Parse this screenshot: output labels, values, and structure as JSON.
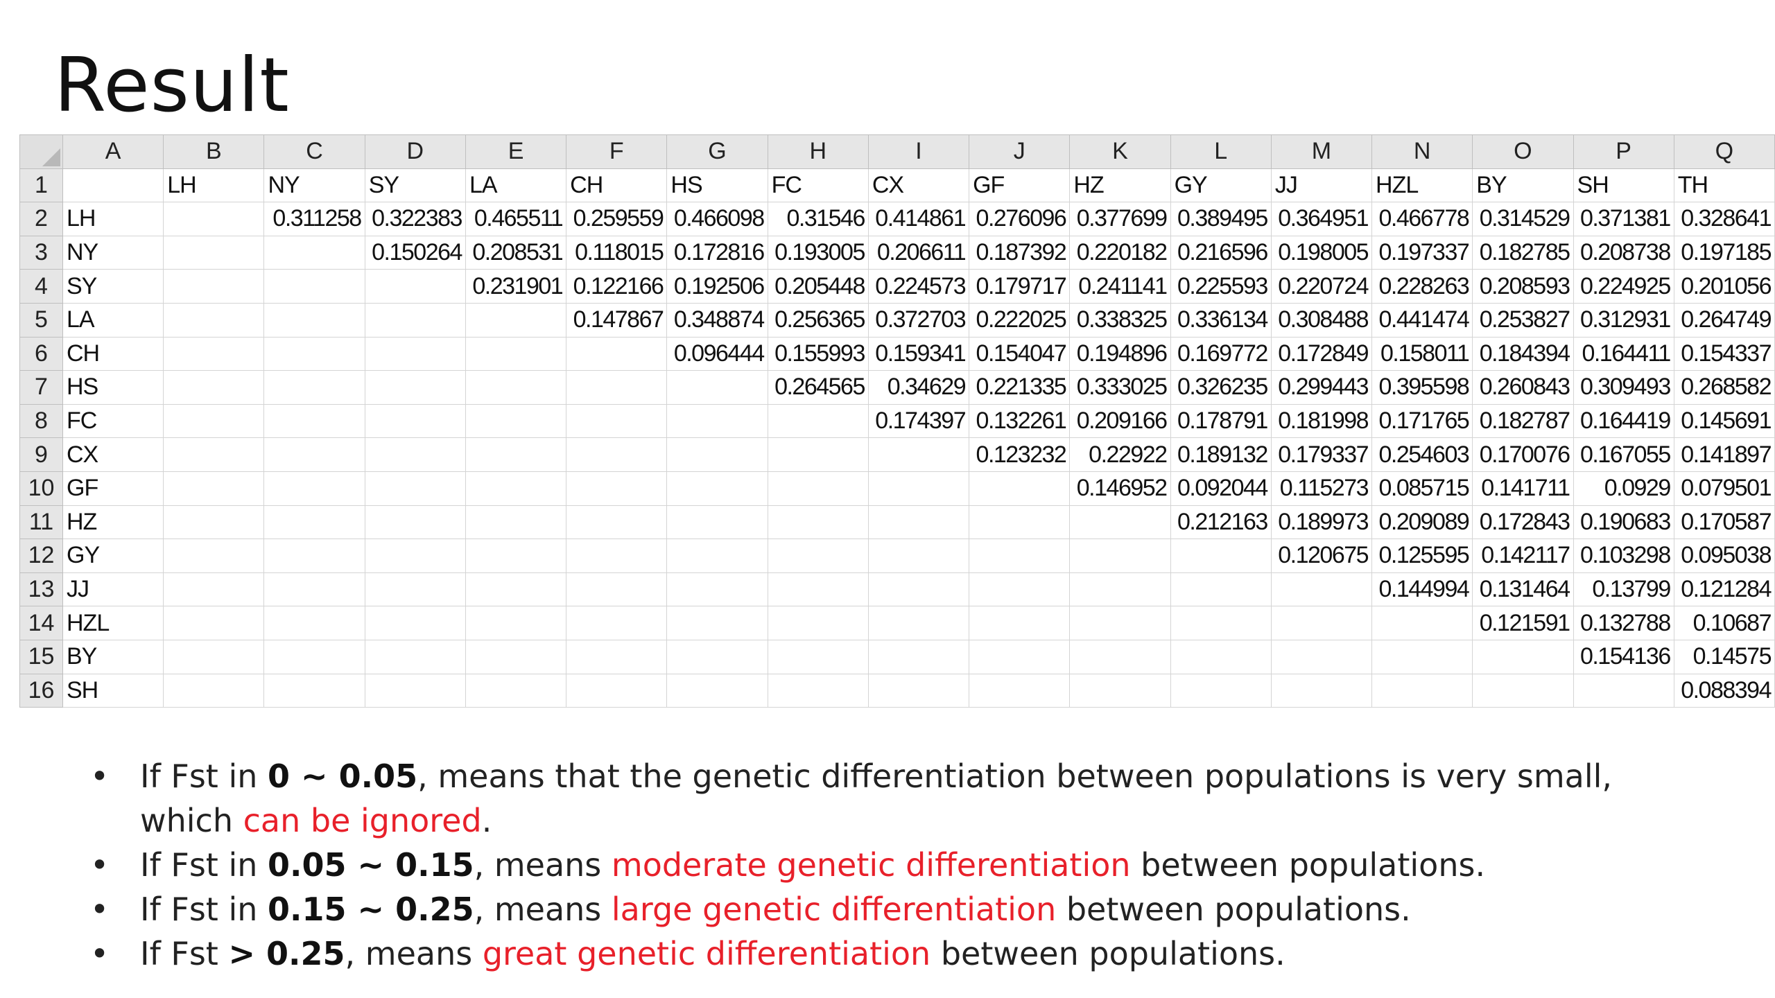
{
  "slide": {
    "title": "Result"
  },
  "sheet": {
    "column_letters": [
      "A",
      "B",
      "C",
      "D",
      "E",
      "F",
      "G",
      "H",
      "I",
      "J",
      "K",
      "L",
      "M",
      "N",
      "O",
      "P",
      "Q"
    ],
    "row_numbers": [
      "1",
      "2",
      "3",
      "4",
      "5",
      "6",
      "7",
      "8",
      "9",
      "10",
      "11",
      "12",
      "13",
      "14",
      "15",
      "16"
    ],
    "rows": [
      [
        "",
        "LH",
        "NY",
        "SY",
        "LA",
        "CH",
        "HS",
        "FC",
        "CX",
        "GF",
        "HZ",
        "GY",
        "JJ",
        "HZL",
        "BY",
        "SH",
        "TH"
      ],
      [
        "LH",
        "",
        "0.311258",
        "0.322383",
        "0.465511",
        "0.259559",
        "0.466098",
        "0.31546",
        "0.414861",
        "0.276096",
        "0.377699",
        "0.389495",
        "0.364951",
        "0.466778",
        "0.314529",
        "0.371381",
        "0.328641"
      ],
      [
        "NY",
        "",
        "",
        "0.150264",
        "0.208531",
        "0.118015",
        "0.172816",
        "0.193005",
        "0.206611",
        "0.187392",
        "0.220182",
        "0.216596",
        "0.198005",
        "0.197337",
        "0.182785",
        "0.208738",
        "0.197185"
      ],
      [
        "SY",
        "",
        "",
        "",
        "0.231901",
        "0.122166",
        "0.192506",
        "0.205448",
        "0.224573",
        "0.179717",
        "0.241141",
        "0.225593",
        "0.220724",
        "0.228263",
        "0.208593",
        "0.224925",
        "0.201056"
      ],
      [
        "LA",
        "",
        "",
        "",
        "",
        "0.147867",
        "0.348874",
        "0.256365",
        "0.372703",
        "0.222025",
        "0.338325",
        "0.336134",
        "0.308488",
        "0.441474",
        "0.253827",
        "0.312931",
        "0.264749"
      ],
      [
        "CH",
        "",
        "",
        "",
        "",
        "",
        "0.096444",
        "0.155993",
        "0.159341",
        "0.154047",
        "0.194896",
        "0.169772",
        "0.172849",
        "0.158011",
        "0.184394",
        "0.164411",
        "0.154337"
      ],
      [
        "HS",
        "",
        "",
        "",
        "",
        "",
        "",
        "0.264565",
        "0.34629",
        "0.221335",
        "0.333025",
        "0.326235",
        "0.299443",
        "0.395598",
        "0.260843",
        "0.309493",
        "0.268582"
      ],
      [
        "FC",
        "",
        "",
        "",
        "",
        "",
        "",
        "",
        "0.174397",
        "0.132261",
        "0.209166",
        "0.178791",
        "0.181998",
        "0.171765",
        "0.182787",
        "0.164419",
        "0.145691"
      ],
      [
        "CX",
        "",
        "",
        "",
        "",
        "",
        "",
        "",
        "",
        "0.123232",
        "0.22922",
        "0.189132",
        "0.179337",
        "0.254603",
        "0.170076",
        "0.167055",
        "0.141897"
      ],
      [
        "GF",
        "",
        "",
        "",
        "",
        "",
        "",
        "",
        "",
        "",
        "0.146952",
        "0.092044",
        "0.115273",
        "0.085715",
        "0.141711",
        "0.0929",
        "0.079501"
      ],
      [
        "HZ",
        "",
        "",
        "",
        "",
        "",
        "",
        "",
        "",
        "",
        "",
        "0.212163",
        "0.189973",
        "0.209089",
        "0.172843",
        "0.190683",
        "0.170587"
      ],
      [
        "GY",
        "",
        "",
        "",
        "",
        "",
        "",
        "",
        "",
        "",
        "",
        "",
        "0.120675",
        "0.125595",
        "0.142117",
        "0.103298",
        "0.095038"
      ],
      [
        "JJ",
        "",
        "",
        "",
        "",
        "",
        "",
        "",
        "",
        "",
        "",
        "",
        "",
        "0.144994",
        "0.131464",
        "0.13799",
        "0.121284"
      ],
      [
        "HZL",
        "",
        "",
        "",
        "",
        "",
        "",
        "",
        "",
        "",
        "",
        "",
        "",
        "",
        "0.121591",
        "0.132788",
        "0.10687"
      ],
      [
        "BY",
        "",
        "",
        "",
        "",
        "",
        "",
        "",
        "",
        "",
        "",
        "",
        "",
        "",
        "",
        "0.154136",
        "0.14575"
      ],
      [
        "SH",
        "",
        "",
        "",
        "",
        "",
        "",
        "",
        "",
        "",
        "",
        "",
        "",
        "",
        "",
        "",
        "0.088394"
      ]
    ]
  },
  "bullets": [
    {
      "lines": [
        [
          {
            "t": "If Fst in ",
            "s": "n"
          },
          {
            "t": "0 ~ 0.05",
            "s": "b"
          },
          {
            "t": ", means that the genetic differentiation between populations is very small,",
            "s": "n"
          }
        ],
        [
          {
            "t": "which ",
            "s": "n"
          },
          {
            "t": "can be ignored",
            "s": "r"
          },
          {
            "t": ".",
            "s": "n"
          }
        ]
      ]
    },
    {
      "lines": [
        [
          {
            "t": "If Fst in ",
            "s": "n"
          },
          {
            "t": "0.05 ~ 0.15",
            "s": "b"
          },
          {
            "t": ", means ",
            "s": "n"
          },
          {
            "t": "moderate genetic differentiation",
            "s": "r"
          },
          {
            "t": " between populations.",
            "s": "n"
          }
        ]
      ]
    },
    {
      "lines": [
        [
          {
            "t": "If Fst in ",
            "s": "n"
          },
          {
            "t": "0.15 ~ 0.25",
            "s": "b"
          },
          {
            "t": ", means ",
            "s": "n"
          },
          {
            "t": "large genetic differentiation",
            "s": "r"
          },
          {
            "t": " between populations.",
            "s": "n"
          }
        ]
      ]
    },
    {
      "lines": [
        [
          {
            "t": "If Fst ",
            "s": "n"
          },
          {
            "t": "> 0.25",
            "s": "b"
          },
          {
            "t": ", means ",
            "s": "n"
          },
          {
            "t": "great genetic differentiation",
            "s": "r"
          },
          {
            "t": " between populations.",
            "s": "n"
          }
        ]
      ]
    }
  ]
}
